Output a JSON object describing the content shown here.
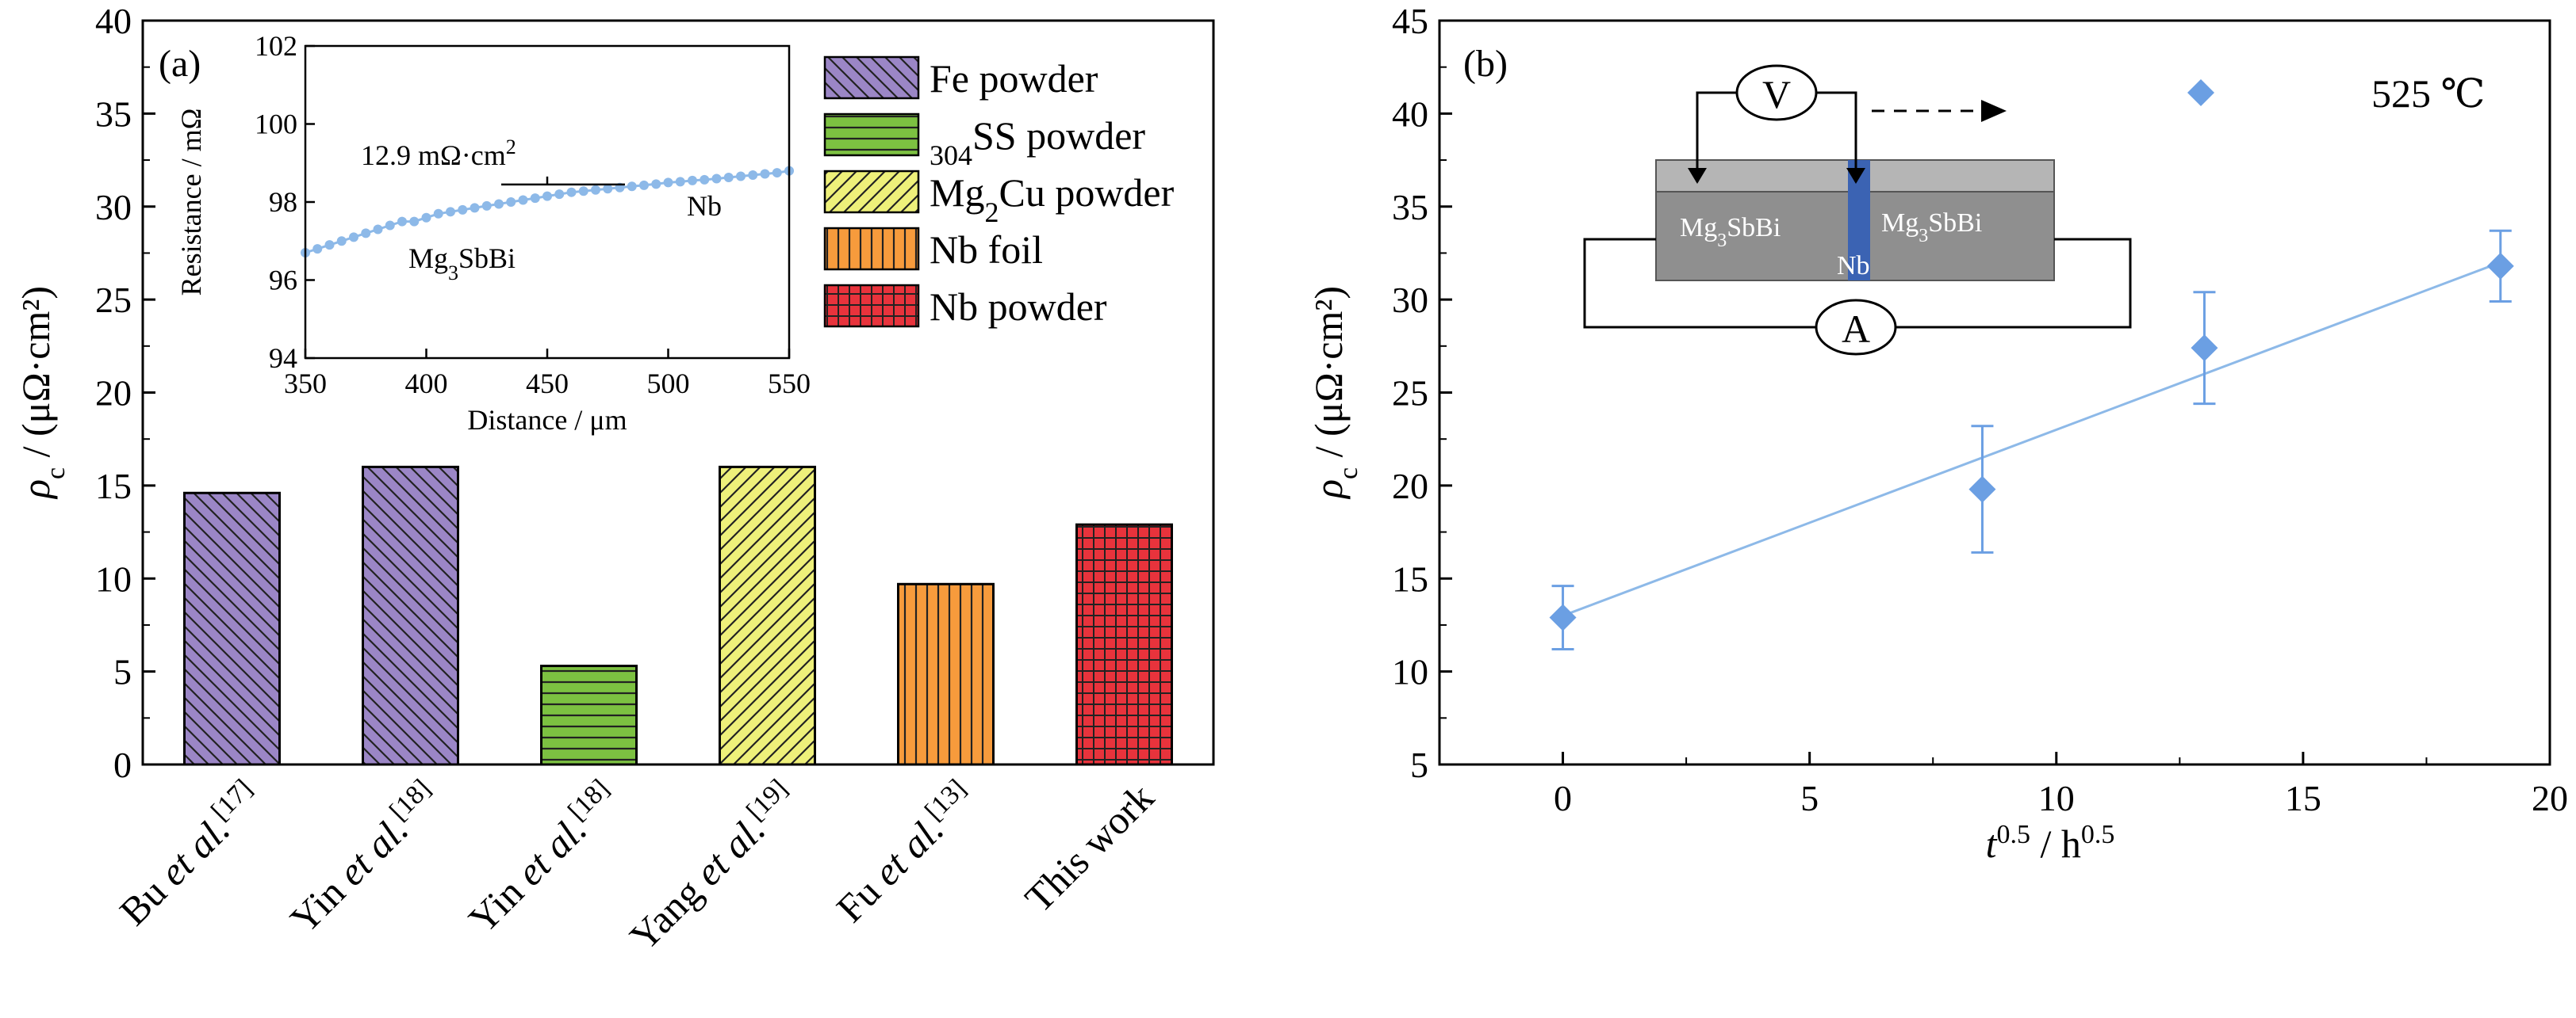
{
  "figure_panels": [
    "(a)",
    "(b)"
  ],
  "chart_data": [
    {
      "type": "bar",
      "panel_label": "(a)",
      "ylabel": "ρc / (μΩ·cm²)",
      "ylim": [
        0,
        40
      ],
      "yticks": [
        0,
        5,
        10,
        15,
        20,
        25,
        30,
        35,
        40
      ],
      "grid": false,
      "legend_position": "top-right",
      "categories": [
        {
          "name": "Bu",
          "italic": "et al.",
          "ref": "[17]"
        },
        {
          "name": "Yin",
          "italic": "et al.",
          "ref": "[18]"
        },
        {
          "name": "Yin",
          "italic": "et al.",
          "ref": "[18]"
        },
        {
          "name": "Yang",
          "italic": "et al.",
          "ref": "[19]"
        },
        {
          "name": "Fu",
          "italic": "et al.",
          "ref": "[13]"
        },
        {
          "name": "This work",
          "italic": "",
          "ref": ""
        }
      ],
      "values": [
        14.6,
        16.0,
        5.3,
        16.0,
        9.7,
        12.9
      ],
      "bar_series": [
        0,
        0,
        1,
        2,
        3,
        4
      ],
      "legend": [
        {
          "label": "Fe powder",
          "color": "#9b86c6",
          "pattern": "diag-back"
        },
        {
          "label": "304SS powder",
          "color": "#7cc141",
          "pattern": "horizontal"
        },
        {
          "label": "Mg2Cu powder",
          "color": "#eef07a",
          "pattern": "diag-fwd"
        },
        {
          "label": "Nb foil",
          "color": "#f79b3c",
          "pattern": "vertical"
        },
        {
          "label": "Nb powder",
          "color": "#e8333c",
          "pattern": "grid"
        }
      ],
      "inset": {
        "type": "line",
        "xlabel": "Distance / μm",
        "ylabel": "Resistance / mΩ",
        "xlim": [
          350,
          550
        ],
        "ylim": [
          94,
          102
        ],
        "xticks": [
          350,
          400,
          450,
          500,
          550
        ],
        "yticks": [
          94,
          96,
          98,
          100,
          102
        ],
        "color": "#8db9e8",
        "x": [
          350,
          355,
          360,
          365,
          370,
          375,
          380,
          385,
          390,
          395,
          400,
          405,
          410,
          415,
          420,
          425,
          430,
          435,
          440,
          445,
          450,
          455,
          460,
          465,
          470,
          475,
          480,
          485,
          490,
          495,
          500,
          505,
          510,
          515,
          520,
          525,
          530,
          535,
          540,
          545,
          550
        ],
        "y": [
          96.7,
          96.8,
          96.9,
          97.0,
          97.1,
          97.2,
          97.3,
          97.4,
          97.5,
          97.5,
          97.6,
          97.7,
          97.75,
          97.8,
          97.85,
          97.9,
          97.95,
          98.0,
          98.05,
          98.1,
          98.15,
          98.2,
          98.25,
          98.28,
          98.31,
          98.34,
          98.37,
          98.4,
          98.43,
          98.46,
          98.5,
          98.52,
          98.55,
          98.57,
          98.6,
          98.63,
          98.66,
          98.69,
          98.72,
          98.75,
          98.8
        ],
        "annotations": {
          "step": "12.9 mΩ·cm²",
          "left_material": "Mg3SbBi",
          "right_material": "Nb"
        }
      }
    },
    {
      "type": "scatter",
      "panel_label": "(b)",
      "xlabel": "t^0.5 / h^0.5",
      "ylabel": "ρc / (μΩ·cm²)",
      "xlim": [
        -2.5,
        20
      ],
      "ylim": [
        5,
        45
      ],
      "xticks": [
        0,
        5,
        10,
        15,
        20
      ],
      "yticks": [
        5,
        10,
        15,
        20,
        25,
        30,
        35,
        40,
        45
      ],
      "grid": false,
      "legend_position": "top-right",
      "color": "#6b9fe3",
      "series": [
        {
          "name": "525 ℃",
          "x": [
            0,
            8.5,
            13,
            19
          ],
          "y": [
            12.9,
            19.8,
            27.4,
            31.8
          ],
          "yerr": [
            1.7,
            3.4,
            3.0,
            1.9
          ]
        }
      ],
      "fit_line": {
        "x": [
          0,
          19
        ],
        "y": [
          13.0,
          32.0
        ]
      },
      "inset_schematic": {
        "voltmeter": "V",
        "ammeter": "A",
        "left_block": "Mg3SbBi",
        "middle": "Nb",
        "right_block": "Mg3SbBi"
      }
    }
  ]
}
